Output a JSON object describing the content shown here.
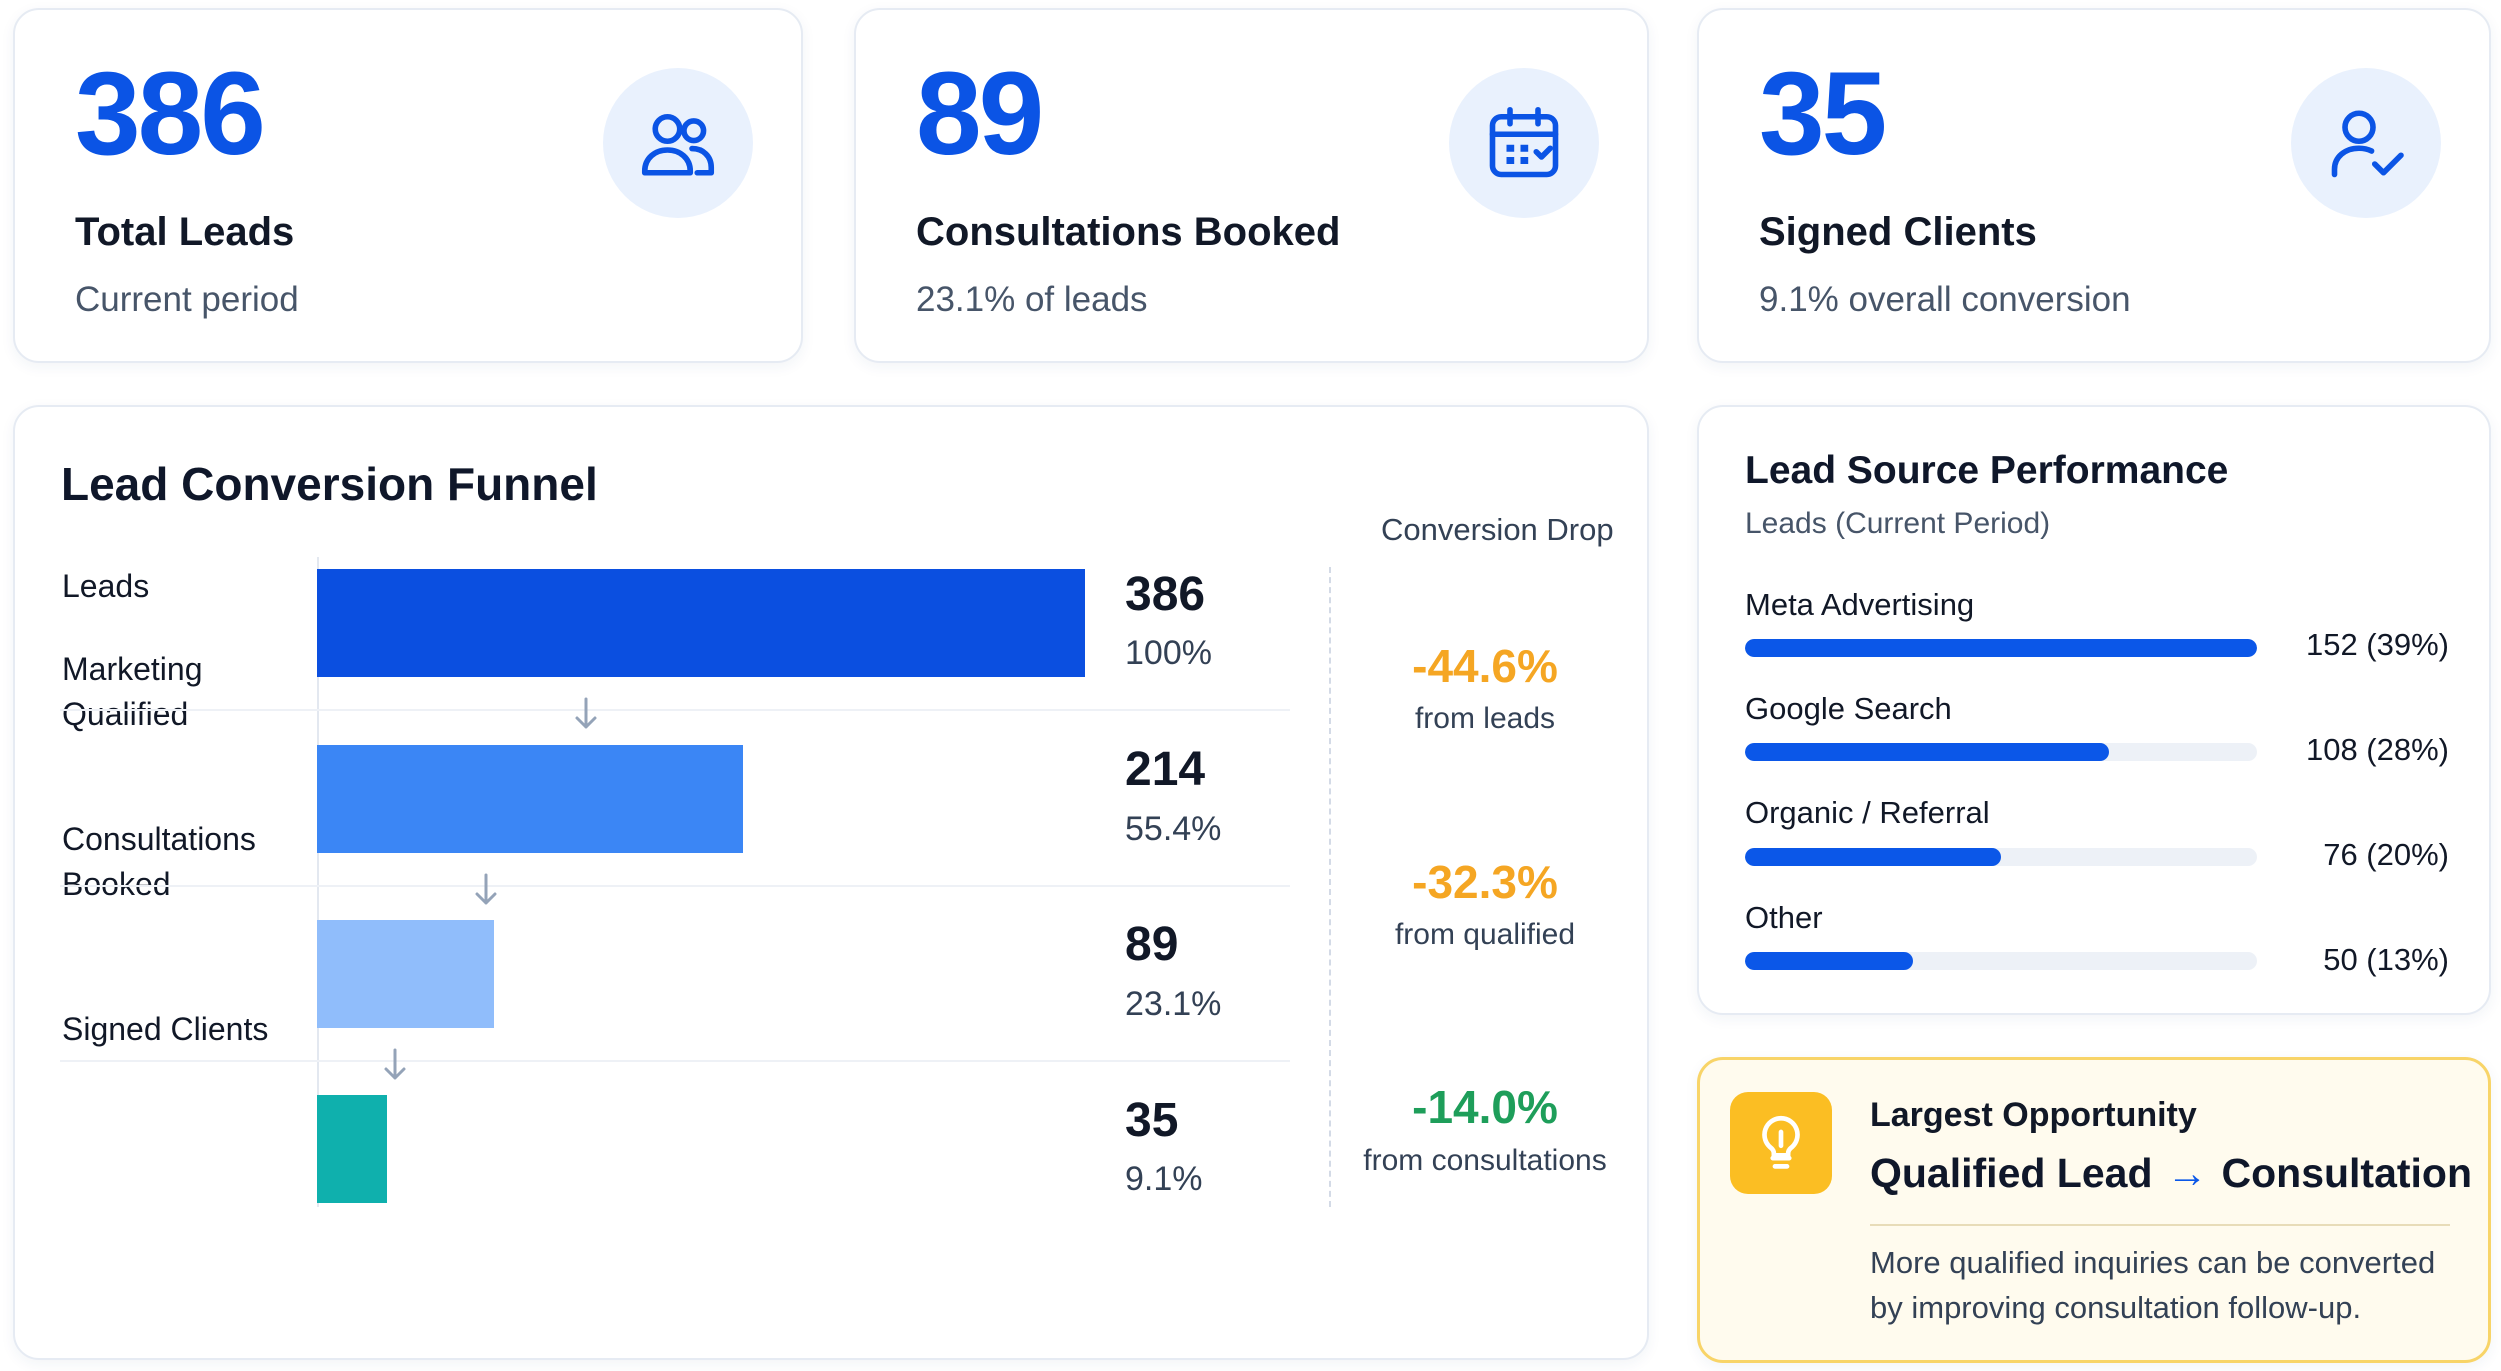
{
  "kpis": [
    {
      "value": "386",
      "label": "Total Leads",
      "sub": "Current period",
      "icon": "users-icon"
    },
    {
      "value": "89",
      "label": "Consultations Booked",
      "sub": "23.1% of leads",
      "icon": "calendar-icon"
    },
    {
      "value": "35",
      "label": "Signed Clients",
      "sub": "9.1% overall conversion",
      "icon": "user-check-icon"
    }
  ],
  "funnel": {
    "title": "Lead Conversion Funnel",
    "drop_header": "Conversion Drop",
    "stages": [
      {
        "label": "Leads",
        "count": "386",
        "pct": "100%"
      },
      {
        "label": "Marketing Qualified",
        "count": "214",
        "pct": "55.4%"
      },
      {
        "label": "Consultations Booked",
        "count": "89",
        "pct": "23.1%"
      },
      {
        "label": "Signed Clients",
        "count": "35",
        "pct": "9.1%"
      }
    ],
    "drops": [
      {
        "value": "-44.6%",
        "label": "from leads"
      },
      {
        "value": "-32.3%",
        "label": "from qualified"
      },
      {
        "value": "-14.0%",
        "label": "from consultations"
      }
    ]
  },
  "lead_sources": {
    "title": "Lead Source Performance",
    "subtitle": "Leads (Current Period)",
    "items": [
      {
        "name": "Meta Advertising",
        "value_text": "152 (39%)"
      },
      {
        "name": "Google Search",
        "value_text": "108 (28%)"
      },
      {
        "name": "Organic / Referral",
        "value_text": "76 (20%)"
      },
      {
        "name": "Other",
        "value_text": "50 (13%)"
      }
    ]
  },
  "opportunity": {
    "title": "Largest Opportunity",
    "from": "Qualified Lead",
    "to": "Consultation",
    "arrow": "→",
    "text": "More qualified inquiries can be converted by improving consultation follow-up.",
    "icon": "lightbulb-icon"
  },
  "colors": {
    "accent": "#0b54e5",
    "stage_colors": [
      "#0b4fe0",
      "#3b86f5",
      "#90bdfb",
      "#0fb0ad"
    ],
    "drop_colors": [
      "#f5a623",
      "#f5a623",
      "#1e9e5a"
    ],
    "source_bar": "#0b57e8",
    "opportunity_bg": "#fffbee",
    "opportunity_border": "#f8d468",
    "opportunity_icon_bg": "#fbbe23"
  },
  "chart_data": [
    {
      "type": "bar",
      "title": "Lead Conversion Funnel",
      "categories": [
        "Leads",
        "Marketing Qualified",
        "Consultations Booked",
        "Signed Clients"
      ],
      "values": [
        386,
        214,
        89,
        35
      ],
      "percent_of_leads": [
        100,
        55.4,
        23.1,
        9.1
      ],
      "conversion_drop": [
        -44.6,
        -32.3,
        -14.0
      ],
      "orientation": "horizontal",
      "xlim": [
        0,
        386
      ]
    },
    {
      "type": "bar",
      "title": "Lead Source Performance",
      "subtitle": "Leads (Current Period)",
      "categories": [
        "Meta Advertising",
        "Google Search",
        "Organic / Referral",
        "Other"
      ],
      "values": [
        152,
        108,
        76,
        50
      ],
      "percentages": [
        39,
        28,
        20,
        13
      ],
      "orientation": "horizontal",
      "xlim": [
        0,
        152
      ]
    }
  ]
}
